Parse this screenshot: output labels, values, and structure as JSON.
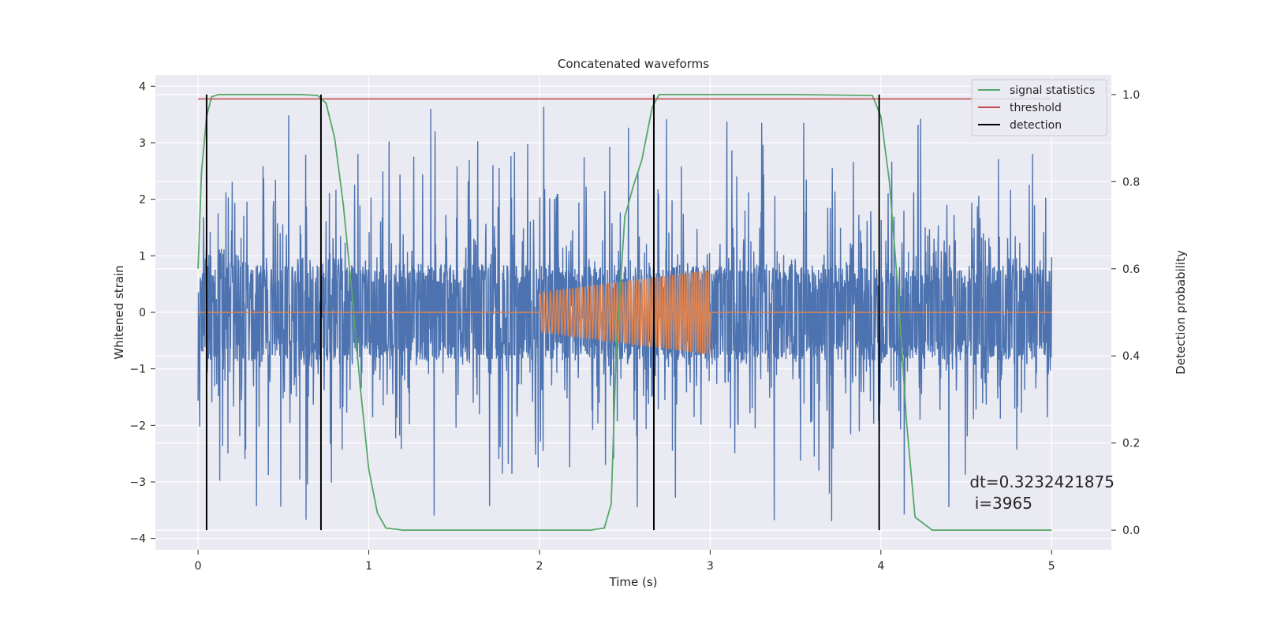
{
  "chart_data": {
    "type": "line",
    "title": "Concatenated waveforms",
    "xlabel": "Time (s)",
    "ylabel": "Whitened strain",
    "ylabel_right": "Detection probability",
    "xlim": [
      -0.25,
      5.35
    ],
    "ylim": [
      -4.2,
      4.2
    ],
    "ylim_right": [
      -0.045,
      1.045
    ],
    "xticks": [
      0,
      1,
      2,
      3,
      4,
      5
    ],
    "yticks": [
      -4,
      -3,
      -2,
      -1,
      0,
      1,
      2,
      3,
      4
    ],
    "yticks_right": [
      0.0,
      0.2,
      0.4,
      0.6,
      0.8,
      1.0
    ],
    "xtick_labels": [
      "0",
      "1",
      "2",
      "3",
      "4",
      "5"
    ],
    "ytick_labels": [
      "−4",
      "−3",
      "−2",
      "−1",
      "0",
      "1",
      "2",
      "3",
      "4"
    ],
    "ytick_labels_right": [
      "0.0",
      "0.2",
      "0.4",
      "0.6",
      "0.8",
      "1.0"
    ],
    "grid": true,
    "legend_position": "top-right",
    "series": [
      {
        "name": "",
        "axis": "left",
        "kind": "noise",
        "color": "#4c72b0",
        "x_range": [
          0,
          5
        ],
        "envelope_bulk": 0.85,
        "envelope_peak": 3.7
      },
      {
        "name": "",
        "axis": "left",
        "kind": "chirp",
        "color": "#dd8452",
        "x_range": [
          0,
          5
        ],
        "chirp_start": 2.0,
        "chirp_end": 3.0,
        "amplitude_start": 0.35,
        "amplitude_end": 0.75
      },
      {
        "name": "signal statistics",
        "axis": "right",
        "color": "#55a868",
        "x": [
          0,
          0.02,
          0.05,
          0.08,
          0.12,
          0.2,
          0.6,
          0.7,
          0.75,
          0.8,
          0.85,
          0.9,
          0.95,
          1.0,
          1.05,
          1.1,
          1.2,
          2.3,
          2.38,
          2.42,
          2.45,
          2.5,
          2.55,
          2.6,
          2.63,
          2.66,
          2.7,
          2.8,
          3.5,
          3.95,
          4.0,
          4.05,
          4.1,
          4.15,
          4.2,
          4.3,
          5.0
        ],
        "y": [
          0.6,
          0.82,
          0.95,
          0.995,
          1.0,
          1.0,
          1.0,
          0.998,
          0.98,
          0.9,
          0.75,
          0.55,
          0.33,
          0.14,
          0.04,
          0.005,
          0.0,
          0.0,
          0.005,
          0.06,
          0.42,
          0.72,
          0.79,
          0.85,
          0.91,
          0.97,
          1.0,
          1.0,
          1.0,
          0.998,
          0.95,
          0.8,
          0.55,
          0.25,
          0.03,
          0.0,
          0.0
        ]
      },
      {
        "name": "threshold",
        "axis": "right",
        "color": "#c44e52",
        "x": [
          0,
          5
        ],
        "y": [
          0.99,
          0.99
        ]
      },
      {
        "name": "detection",
        "axis": "right",
        "color": "#000000",
        "kind": "vlines",
        "x": [
          0.05,
          0.72,
          2.67,
          3.99
        ],
        "y_range": [
          0.0,
          1.0
        ]
      }
    ],
    "annotation": {
      "line1": "dt=0.3232421875",
      "line2": " i=3965",
      "x": 4.52,
      "y": -3.0
    },
    "colors": {
      "plot_background": "#eaeaf2",
      "grid": "#ffffff",
      "text": "#262626"
    }
  }
}
